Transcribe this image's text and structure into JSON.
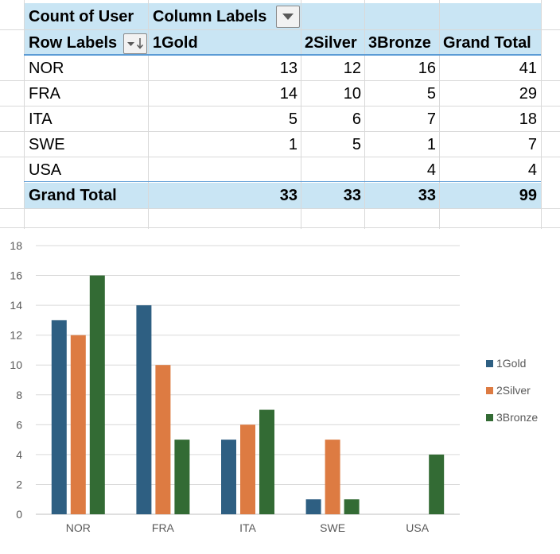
{
  "pivot": {
    "corner_label": "Count of User",
    "column_labels": "Column Labels",
    "row_labels": "Row Labels",
    "columns": [
      "1Gold",
      "2Silver",
      "3Bronze",
      "Grand Total"
    ],
    "rows": [
      {
        "label": "NOR",
        "values": [
          "13",
          "12",
          "16",
          "41"
        ]
      },
      {
        "label": "FRA",
        "values": [
          "14",
          "10",
          "5",
          "29"
        ]
      },
      {
        "label": "ITA",
        "values": [
          "5",
          "6",
          "7",
          "18"
        ]
      },
      {
        "label": "SWE",
        "values": [
          "1",
          "5",
          "1",
          "7"
        ]
      },
      {
        "label": "USA",
        "values": [
          "",
          "",
          "4",
          "4"
        ]
      }
    ],
    "total": {
      "label": "Grand Total",
      "values": [
        "33",
        "33",
        "33",
        "99"
      ]
    }
  },
  "chart_data": {
    "type": "bar",
    "categories": [
      "NOR",
      "FRA",
      "ITA",
      "SWE",
      "USA"
    ],
    "series": [
      {
        "name": "1Gold",
        "values": [
          13,
          14,
          5,
          1,
          0
        ],
        "color": "#2e5f82"
      },
      {
        "name": "2Silver",
        "values": [
          12,
          10,
          6,
          5,
          0
        ],
        "color": "#dd7b42"
      },
      {
        "name": "3Bronze",
        "values": [
          16,
          5,
          7,
          1,
          4
        ],
        "color": "#336b34"
      }
    ],
    "ylim": [
      0,
      18
    ],
    "yticks": [
      0,
      2,
      4,
      6,
      8,
      10,
      12,
      14,
      16,
      18
    ],
    "grid": true,
    "legend": "right",
    "title": "",
    "xlabel": "",
    "ylabel": ""
  }
}
